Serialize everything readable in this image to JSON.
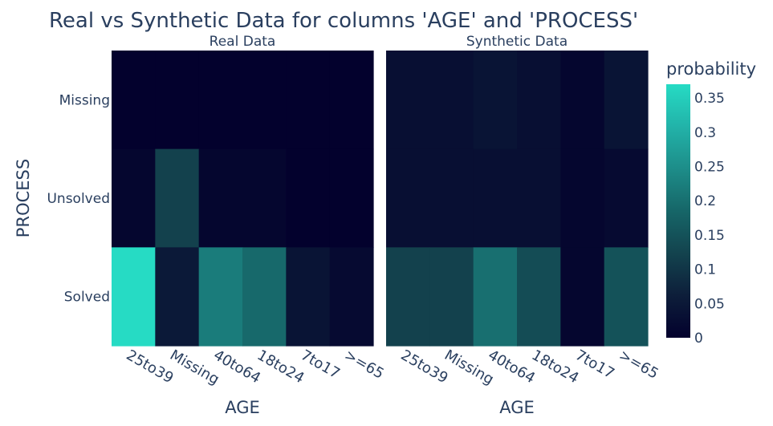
{
  "chart_data": {
    "type": "heatmap",
    "title": "Real vs Synthetic Data for columns 'AGE' and 'PROCESS'",
    "colorbar": {
      "title": "probability",
      "range": [
        0,
        0.37
      ],
      "ticks": [
        "0",
        "0.05",
        "0.1",
        "0.15",
        "0.2",
        "0.25",
        "0.3",
        "0.35"
      ],
      "tick_values": [
        0,
        0.05,
        0.1,
        0.15,
        0.2,
        0.25,
        0.3,
        0.35
      ],
      "colorscale": [
        "#03012d",
        "#0d1e3a",
        "#13434e",
        "#166668",
        "#1d8d89",
        "#22b3a9",
        "#26dbc4"
      ]
    },
    "ylabel": "PROCESS",
    "panels": [
      {
        "subtitle": "Real Data",
        "xlabel": "AGE",
        "x_categories": [
          "25to39",
          "Missing",
          "40to64",
          "18to24",
          "7to17",
          ">=65"
        ],
        "y_categories": [
          "Missing",
          "Unsolved",
          "Solved"
        ],
        "z": [
          [
            0.0,
            0.0,
            0.0,
            0.0,
            0.0,
            0.0
          ],
          [
            0.01,
            0.12,
            0.01,
            0.01,
            0.0,
            0.0
          ],
          [
            0.37,
            0.05,
            0.22,
            0.19,
            0.04,
            0.02
          ]
        ]
      },
      {
        "subtitle": "Synthetic Data",
        "xlabel": "AGE",
        "x_categories": [
          "25to39",
          "Missing",
          "40to64",
          "18to24",
          "7to17",
          ">=65"
        ],
        "y_categories": [
          "Missing",
          "Unsolved",
          "Solved"
        ],
        "z": [
          [
            0.03,
            0.03,
            0.04,
            0.03,
            0.01,
            0.04
          ],
          [
            0.03,
            0.03,
            0.03,
            0.03,
            0.01,
            0.02
          ],
          [
            0.12,
            0.12,
            0.2,
            0.14,
            0.01,
            0.15
          ]
        ]
      }
    ]
  }
}
